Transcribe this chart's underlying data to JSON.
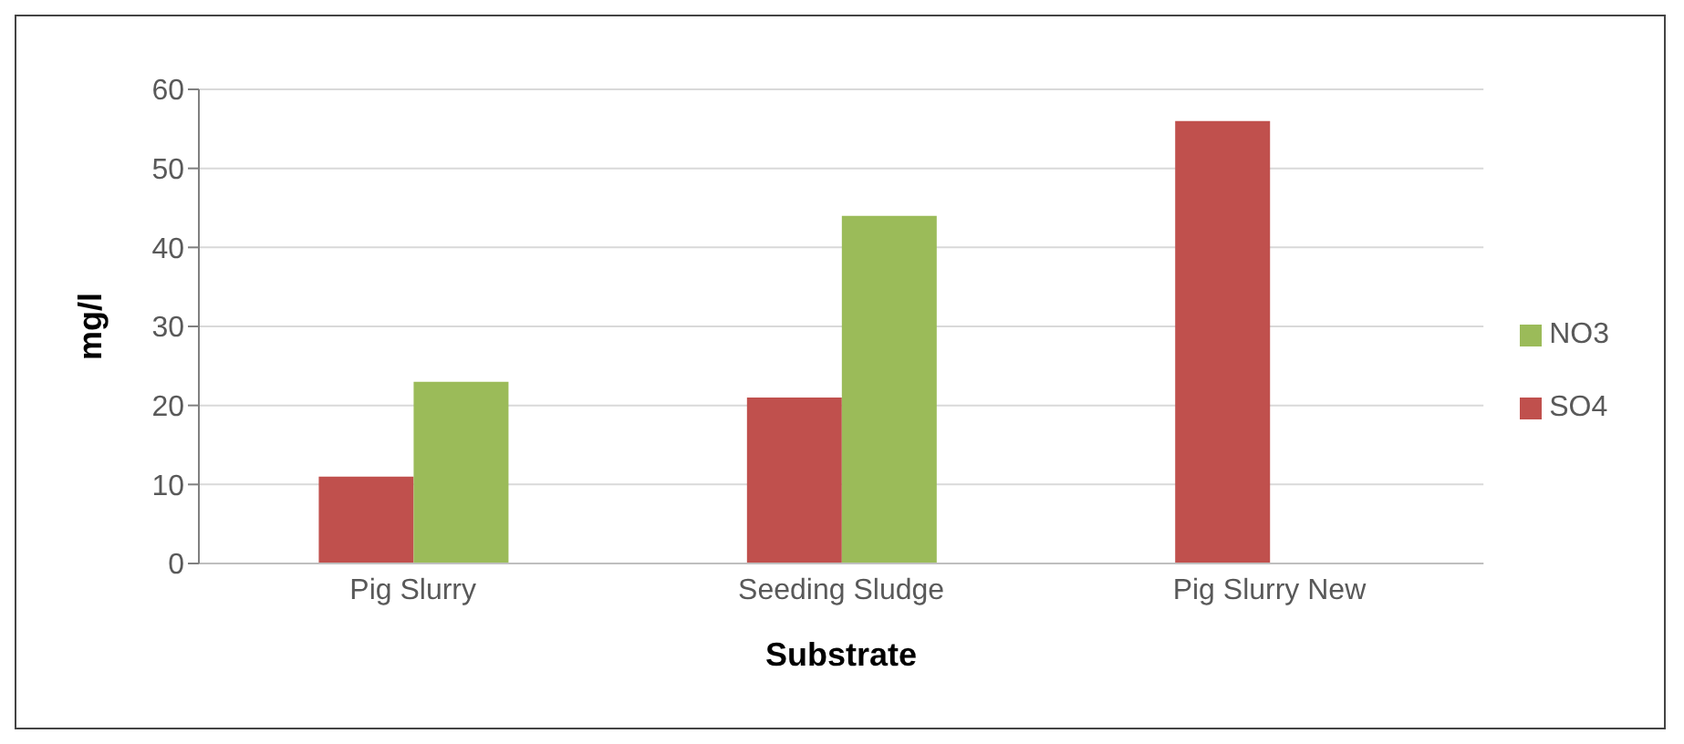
{
  "chart_data": {
    "type": "bar",
    "xlabel": "Substrate",
    "ylabel": "mg/l",
    "categories": [
      "Pig Slurry",
      "Seeding Sludge",
      "Pig Slurry New"
    ],
    "series": [
      {
        "name": "SO4",
        "color": "#c0504d",
        "values": [
          11,
          21,
          56
        ]
      },
      {
        "name": "NO3",
        "color": "#9bbb59",
        "values": [
          23,
          44,
          null
        ]
      }
    ],
    "ylim": [
      0,
      60
    ],
    "yticks": [
      0,
      10,
      20,
      30,
      40,
      50,
      60
    ],
    "grid": "y",
    "legend": "right"
  }
}
